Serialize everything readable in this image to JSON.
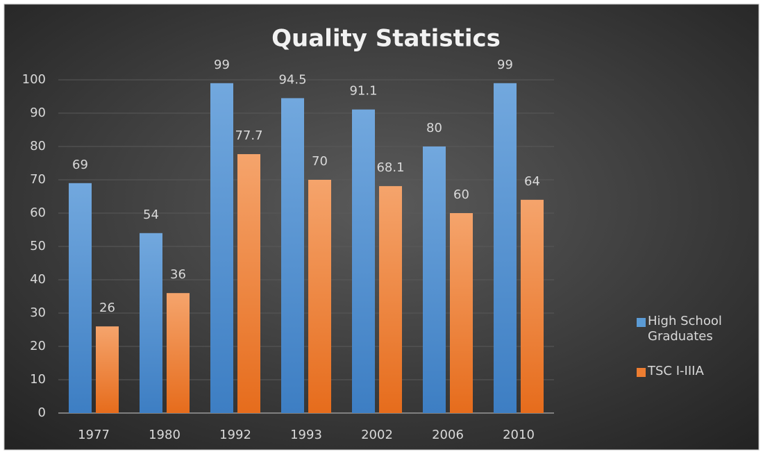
{
  "chart_data": {
    "type": "bar",
    "title": "Quality Statistics",
    "categories": [
      "1977",
      "1980",
      "1992",
      "1993",
      "2002",
      "2006",
      "2010"
    ],
    "series": [
      {
        "name": "High School Graduates",
        "color": "#5b9bd5",
        "values": [
          69,
          54,
          99,
          94.5,
          91.1,
          80,
          99
        ]
      },
      {
        "name": "TSC I-IIIA",
        "color": "#ed7d31",
        "values": [
          26,
          36,
          77.7,
          70,
          68.1,
          60,
          64
        ]
      }
    ],
    "ylim": [
      0,
      100
    ],
    "yticks": [
      0,
      10,
      20,
      30,
      40,
      50,
      60,
      70,
      80,
      90,
      100
    ],
    "grid": true,
    "legend": "right"
  }
}
